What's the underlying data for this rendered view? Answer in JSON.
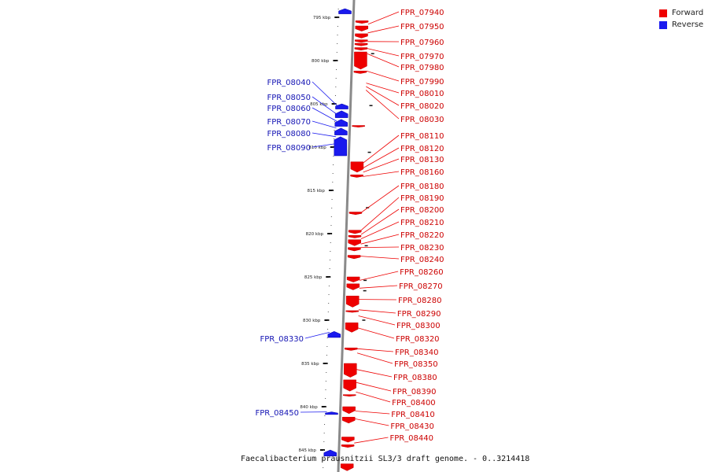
{
  "caption": "Faecalibacterium prausnitzii SL3/3 draft genome. - 0..3214418",
  "legend": [
    {
      "label": "Forward",
      "color": "#ee0000"
    },
    {
      "label": "Reverse",
      "color": "#0000ee"
    }
  ],
  "colors": {
    "forward": "#ee0000",
    "reverse": "#1a1aee",
    "axis": "#888888"
  },
  "scale_ticks": [
    {
      "label": "795 kbp",
      "value": 795
    },
    {
      "label": "800 kbp",
      "value": 800
    },
    {
      "label": "805 kbp",
      "value": 805
    },
    {
      "label": "810 kbp",
      "value": 810
    },
    {
      "label": "815 kbp",
      "value": 815
    },
    {
      "label": "820 kbp",
      "value": 820
    },
    {
      "label": "825 kbp",
      "value": 825
    },
    {
      "label": "830 kbp",
      "value": 830
    },
    {
      "label": "835 kbp",
      "value": 835
    },
    {
      "label": "840 kbp",
      "value": 840
    },
    {
      "label": "845 kbp",
      "value": 845
    }
  ],
  "forward_genes": [
    {
      "name": "FPR_07940",
      "pos": 795.8
    },
    {
      "name": "FPR_07950",
      "pos": 796.8
    },
    {
      "name": "FPR_07960",
      "pos": 797.8
    },
    {
      "name": "FPR_07970",
      "pos": 798.6
    },
    {
      "name": "FPR_07980",
      "pos": 799.2
    },
    {
      "name": "FPR_07990",
      "pos": 801.2
    },
    {
      "name": "FPR_08010",
      "pos": 802.6
    },
    {
      "name": "FPR_08020",
      "pos": 803.0
    },
    {
      "name": "FPR_08030",
      "pos": 803.4
    },
    {
      "name": "FPR_08110",
      "pos": 811.8
    },
    {
      "name": "FPR_08120",
      "pos": 812.4
    },
    {
      "name": "FPR_08130",
      "pos": 812.9
    },
    {
      "name": "FPR_08160",
      "pos": 813.4
    },
    {
      "name": "FPR_08180",
      "pos": 817.5
    },
    {
      "name": "FPR_08190",
      "pos": 819.6
    },
    {
      "name": "FPR_08200",
      "pos": 820.1
    },
    {
      "name": "FPR_08210",
      "pos": 820.6
    },
    {
      "name": "FPR_08220",
      "pos": 821.2
    },
    {
      "name": "FPR_08230",
      "pos": 821.6
    },
    {
      "name": "FPR_08240",
      "pos": 822.6
    },
    {
      "name": "FPR_08260",
      "pos": 825.4
    },
    {
      "name": "FPR_08270",
      "pos": 826.3
    },
    {
      "name": "FPR_08280",
      "pos": 827.6
    },
    {
      "name": "FPR_08290",
      "pos": 828.8
    },
    {
      "name": "FPR_08300",
      "pos": 829.5
    },
    {
      "name": "FPR_08320",
      "pos": 830.9
    },
    {
      "name": "FPR_08340",
      "pos": 833.3
    },
    {
      "name": "FPR_08350",
      "pos": 833.8
    },
    {
      "name": "FPR_08380",
      "pos": 835.7
    },
    {
      "name": "FPR_08390",
      "pos": 837.2
    },
    {
      "name": "FPR_08400",
      "pos": 838.3
    },
    {
      "name": "FPR_08410",
      "pos": 840.5
    },
    {
      "name": "FPR_08430",
      "pos": 841.4
    },
    {
      "name": "FPR_08440",
      "pos": 844.2
    }
  ],
  "reverse_genes": [
    {
      "name": "FPR_08040",
      "pos": 805.2
    },
    {
      "name": "FPR_08050",
      "pos": 806.2
    },
    {
      "name": "FPR_08060",
      "pos": 807.0
    },
    {
      "name": "FPR_08070",
      "pos": 807.8
    },
    {
      "name": "FPR_08080",
      "pos": 808.8
    },
    {
      "name": "FPR_08090",
      "pos": 809.6
    },
    {
      "name": "FPR_08330",
      "pos": 831.4
    },
    {
      "name": "FPR_08450",
      "pos": 840.6
    }
  ],
  "forward_blocks": [
    {
      "start": 795.4,
      "end": 795.7
    },
    {
      "start": 796.0,
      "end": 796.6
    },
    {
      "start": 796.9,
      "end": 797.4
    },
    {
      "start": 797.6,
      "end": 797.9
    },
    {
      "start": 798.0,
      "end": 798.3
    },
    {
      "start": 798.5,
      "end": 798.8
    },
    {
      "start": 799.0,
      "end": 801.0
    },
    {
      "start": 801.2,
      "end": 801.5
    },
    {
      "start": 807.5,
      "end": 807.7
    },
    {
      "start": 811.7,
      "end": 812.9
    },
    {
      "start": 813.2,
      "end": 813.5
    },
    {
      "start": 817.5,
      "end": 817.8
    },
    {
      "start": 819.6,
      "end": 820.0
    },
    {
      "start": 820.2,
      "end": 820.5
    },
    {
      "start": 820.7,
      "end": 821.4
    },
    {
      "start": 821.6,
      "end": 822.0
    },
    {
      "start": 822.5,
      "end": 822.9
    },
    {
      "start": 825.0,
      "end": 825.6
    },
    {
      "start": 825.8,
      "end": 826.5
    },
    {
      "start": 827.2,
      "end": 828.5
    },
    {
      "start": 828.9,
      "end": 829.1
    },
    {
      "start": 830.3,
      "end": 831.4
    },
    {
      "start": 833.2,
      "end": 833.5
    },
    {
      "start": 835.0,
      "end": 836.6
    },
    {
      "start": 836.9,
      "end": 838.2
    },
    {
      "start": 838.6,
      "end": 838.8
    },
    {
      "start": 840.0,
      "end": 840.8
    },
    {
      "start": 841.2,
      "end": 841.9
    },
    {
      "start": 843.5,
      "end": 844.1
    },
    {
      "start": 844.4,
      "end": 844.7
    },
    {
      "start": 846.6,
      "end": 847.4
    }
  ],
  "reverse_blocks": [
    {
      "start": 794.0,
      "end": 794.6
    },
    {
      "start": 805.0,
      "end": 805.6
    },
    {
      "start": 805.8,
      "end": 806.6
    },
    {
      "start": 806.8,
      "end": 807.6
    },
    {
      "start": 807.8,
      "end": 808.6
    },
    {
      "start": 808.8,
      "end": 811.0
    },
    {
      "start": 831.3,
      "end": 832.0
    },
    {
      "start": 840.6,
      "end": 840.9
    },
    {
      "start": 845.0,
      "end": 845.7
    }
  ]
}
